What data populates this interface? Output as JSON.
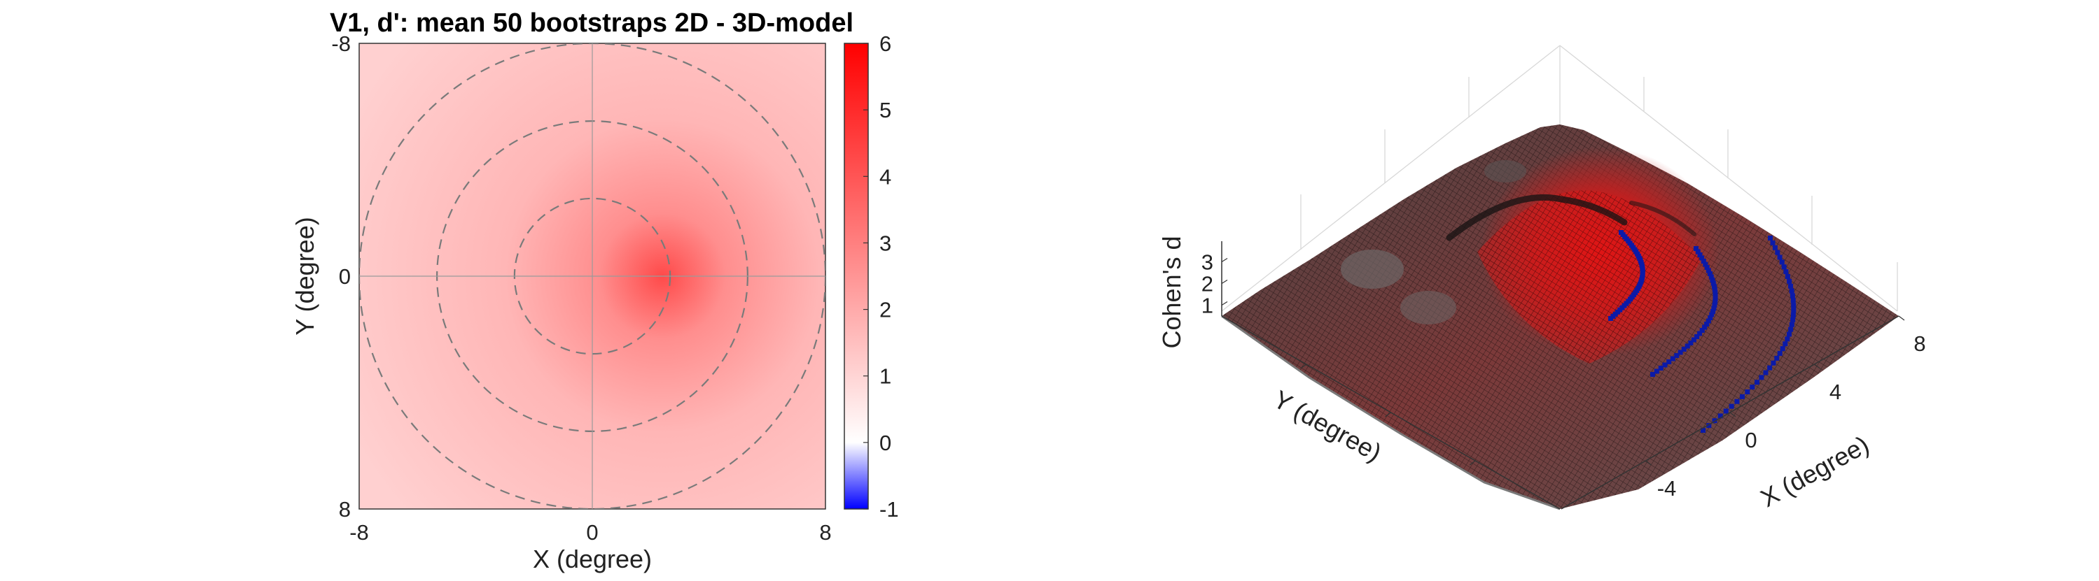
{
  "chart_data": [
    {
      "type": "heatmap",
      "title": "V1, d': mean 50 bootstraps 2D - 3D-model",
      "xlabel": "X (degree)",
      "ylabel": "Y (degree)",
      "xlim": [
        -8,
        8
      ],
      "ylim": [
        -8,
        8
      ],
      "x_ticks": [
        "-8",
        "0",
        "8"
      ],
      "y_ticks": [
        "-8",
        "0",
        "8"
      ],
      "y_reversed": true,
      "colorbar": {
        "range": [
          -1,
          6
        ],
        "ticks": [
          "-1",
          "0",
          "1",
          "2",
          "3",
          "4",
          "5",
          "6"
        ],
        "colormap": [
          "#0000ff",
          "#ffffff",
          "#ff0000"
        ]
      },
      "reference_circles_radius_deg": [
        2.67,
        5.33,
        8
      ],
      "peak": {
        "x": 3,
        "y": 0,
        "value": 3.2
      },
      "background_value": 1.3,
      "crosshair": true
    },
    {
      "type": "surface",
      "zlabel": "Cohen's d",
      "xlabel": "X (degree)",
      "ylabel": "Y (degree)",
      "z_ticks": [
        "1",
        "2",
        "3"
      ],
      "x_ticks": [
        "-4",
        "0",
        "4",
        "8"
      ],
      "xlim": [
        -8,
        8
      ],
      "ylim": [
        -8,
        8
      ],
      "zlim": [
        0.5,
        3.6
      ],
      "surface_color": [
        "#ffffff",
        "#ff0000"
      ],
      "mesh_color": "#000000",
      "eccentricity_markers_deg": [
        2.67,
        5.33,
        8
      ],
      "marker_color": "#0b1aa8"
    }
  ],
  "icons": {
    "marker_style": "dots"
  }
}
